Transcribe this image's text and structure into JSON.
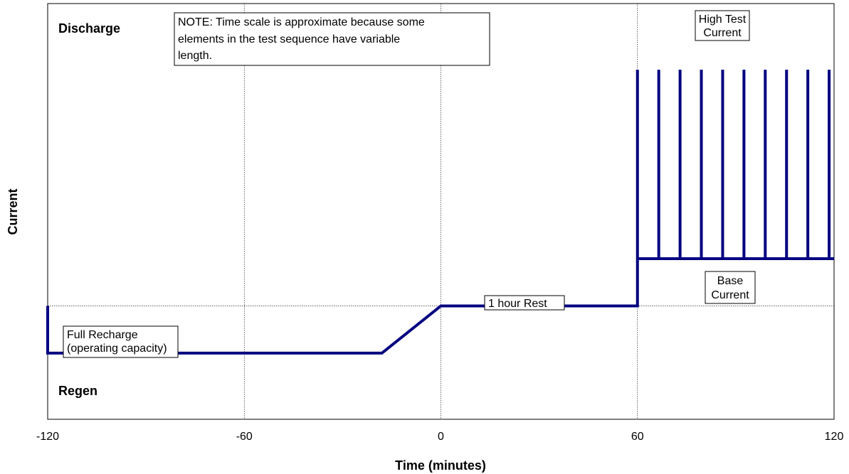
{
  "chart_data": {
    "type": "line",
    "title": "",
    "xlabel": "Time (minutes)",
    "ylabel": "Current",
    "xlim": [
      -120,
      120
    ],
    "ylim": [
      -0.6,
      1.6
    ],
    "x_ticks": [
      -120,
      -60,
      0,
      60,
      120
    ],
    "x_tick_labels": [
      "-120",
      "-60",
      "0",
      "60",
      "120"
    ],
    "grid": true,
    "series": [
      {
        "line_color": "#000080",
        "points": [
          [
            -120,
            0
          ],
          [
            -120,
            -0.25
          ],
          [
            -18,
            -0.25
          ],
          [
            0,
            0
          ],
          [
            60,
            0
          ],
          [
            60,
            0.25
          ],
          [
            60,
            1.25
          ],
          [
            60,
            0.25
          ],
          [
            66.5,
            0.25
          ],
          [
            66.5,
            1.25
          ],
          [
            66.5,
            0.25
          ],
          [
            73,
            0.25
          ],
          [
            73,
            1.25
          ],
          [
            73,
            0.25
          ],
          [
            79.5,
            0.25
          ],
          [
            79.5,
            1.25
          ],
          [
            79.5,
            0.25
          ],
          [
            86,
            0.25
          ],
          [
            86,
            1.25
          ],
          [
            86,
            0.25
          ],
          [
            92.5,
            0.25
          ],
          [
            92.5,
            1.25
          ],
          [
            92.5,
            0.25
          ],
          [
            99,
            0.25
          ],
          [
            99,
            1.25
          ],
          [
            99,
            0.25
          ],
          [
            105.5,
            0.25
          ],
          [
            105.5,
            1.25
          ],
          [
            105.5,
            0.25
          ],
          [
            112,
            0.25
          ],
          [
            112,
            1.25
          ],
          [
            112,
            0.25
          ],
          [
            118.5,
            0.25
          ],
          [
            118.5,
            1.25
          ],
          [
            118.5,
            0.25
          ],
          [
            120,
            0.25
          ]
        ]
      }
    ],
    "region_labels": {
      "discharge": "Discharge",
      "regen": "Regen"
    },
    "annotations": {
      "note_lines": [
        "NOTE: Time scale is approximate because some",
        "elements in the test sequence have variable",
        "length."
      ],
      "high_current_lines": [
        "High Test",
        "Current"
      ],
      "base_current_lines": [
        "Base",
        "Current"
      ],
      "rest": "1 hour Rest",
      "recharge_lines": [
        "Full Recharge",
        "(operating capacity)"
      ]
    }
  }
}
